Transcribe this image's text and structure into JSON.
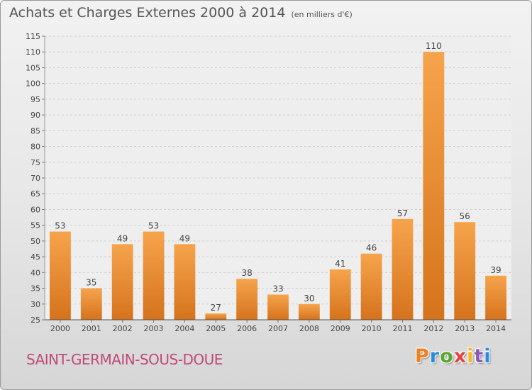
{
  "header": {
    "title": "Achats et Charges Externes 2000 à 2014",
    "subtitle": "(en milliers d'€)"
  },
  "footer": {
    "town": "SAINT-GERMAIN-SOUS-DOUE",
    "brand": "Proxiti"
  },
  "colors": {
    "bar_top": "#f6a44c",
    "bar_bottom": "#d5731c",
    "town": "#c04a7a",
    "brand_letters": [
      "#f07f1f",
      "#2b8bd8",
      "#5aa632",
      "#e04343",
      "#f2b51b",
      "#8b58b2",
      "#2b8bd8"
    ]
  },
  "chart_data": {
    "type": "bar",
    "title": "Achats et Charges Externes 2000 à 2014",
    "subtitle": "(en milliers d'€)",
    "categories": [
      "2000",
      "2001",
      "2002",
      "2003",
      "2004",
      "2005",
      "2006",
      "2007",
      "2008",
      "2009",
      "2010",
      "2011",
      "2012",
      "2013",
      "2014"
    ],
    "values": [
      53,
      35,
      49,
      53,
      49,
      27,
      38,
      33,
      30,
      41,
      46,
      57,
      110,
      56,
      39
    ],
    "ylim": [
      25,
      115
    ],
    "yticks": [
      25,
      30,
      35,
      40,
      45,
      50,
      55,
      60,
      65,
      70,
      75,
      80,
      85,
      90,
      95,
      100,
      105,
      110,
      115
    ],
    "grid": true,
    "legend": "none"
  }
}
